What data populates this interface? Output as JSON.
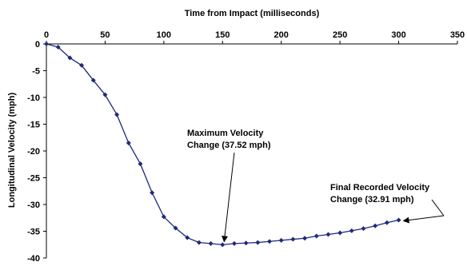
{
  "chart_data": {
    "type": "line",
    "xlabel": "Time from Impact (milliseconds)",
    "ylabel": "Longitudinal Velocity (mph)",
    "xlim": [
      0,
      350
    ],
    "ylim": [
      -40,
      0
    ],
    "x_ticks": [
      0,
      50,
      100,
      150,
      200,
      250,
      300,
      350
    ],
    "y_ticks": [
      0,
      -5,
      -10,
      -15,
      -20,
      -25,
      -30,
      -35,
      -40
    ],
    "x_axis_position": "top",
    "grid": false,
    "legend": "none",
    "line_color": "#1f2a7a",
    "series": [
      {
        "x": [
          0,
          10,
          20,
          30,
          40,
          50,
          60,
          70,
          80,
          90,
          100,
          110,
          120,
          130,
          140,
          150,
          160,
          170,
          180,
          190,
          200,
          210,
          220,
          230,
          240,
          250,
          260,
          270,
          280,
          290,
          300
        ],
        "y": [
          0,
          -0.6,
          -2.6,
          -4.0,
          -6.8,
          -9.5,
          -13.2,
          -18.5,
          -22.4,
          -27.8,
          -32.3,
          -34.4,
          -36.2,
          -37.1,
          -37.3,
          -37.52,
          -37.3,
          -37.2,
          -37.1,
          -36.9,
          -36.7,
          -36.5,
          -36.3,
          -35.9,
          -35.6,
          -35.3,
          -34.9,
          -34.5,
          -34.0,
          -33.4,
          -32.91
        ]
      }
    ],
    "annotations": [
      {
        "id": "max",
        "lines": [
          "Maximum Velocity",
          "Change (37.52 mph)"
        ],
        "target": [
          150,
          -37.52
        ]
      },
      {
        "id": "final",
        "lines": [
          "Final Recorded Velocity",
          "Change (32.91 mph)"
        ],
        "target": [
          300,
          -32.91
        ]
      }
    ]
  }
}
